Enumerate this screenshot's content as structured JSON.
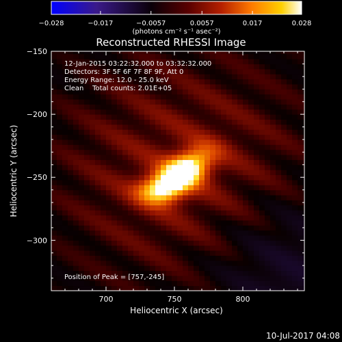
{
  "chart_data": {
    "type": "heatmap",
    "title": "Reconstructed RHESSI Image",
    "xlabel": "Heliocentric X (arcsec)",
    "ylabel": "Heliocentric Y (arcsec)",
    "xlim": [
      660,
      845
    ],
    "ylim": [
      -340,
      -150
    ],
    "xticks": [
      700,
      750,
      800
    ],
    "yticks": [
      -150,
      -200,
      -250,
      -300
    ],
    "x_tick_labels": [
      "700",
      "750",
      "800"
    ],
    "y_tick_labels": [
      "−150",
      "−200",
      "−250",
      "−300"
    ],
    "colorbar": {
      "range": [
        -0.028,
        0.028
      ],
      "ticks": [
        -0.028,
        -0.017,
        -0.0057,
        0.0057,
        0.017,
        0.028
      ],
      "tick_labels": [
        "−0.028",
        "−0.017",
        "−0.0057",
        "0.0057",
        "0.017",
        "0.028"
      ],
      "unit_label": "(photons cm⁻² s⁻¹ asec⁻²)",
      "colors": [
        "#0000ff",
        "#3a1a8a",
        "#000000",
        "#5a0000",
        "#b52000",
        "#ff7a00",
        "#ffd000",
        "#ffffff"
      ]
    },
    "peak": {
      "x": 757,
      "y": -245,
      "value": 0.028
    },
    "annotations": [
      "12-Jan-2015 03:22:32.000 to 03:32:32.000",
      "Detectors: 3F 5F 6F 7F 8F 9F, Att 0",
      "Energy Range: 12.0 - 25.0 keV",
      "Clean    Total counts: 2.01E+05"
    ],
    "peak_label": "Position of Peak = [757,-245]",
    "background": "#000000",
    "grid": false
  },
  "footer_timestamp": "10-Jul-2017 04:08"
}
